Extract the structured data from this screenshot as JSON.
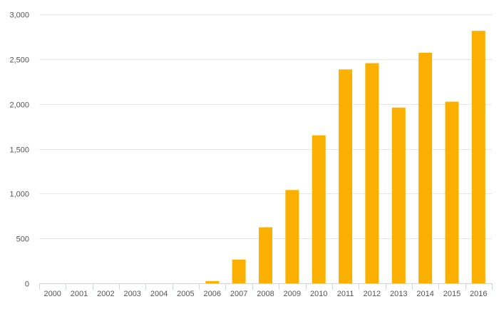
{
  "chart_data": {
    "type": "bar",
    "categories": [
      "2000",
      "2001",
      "2002",
      "2003",
      "2004",
      "2005",
      "2006",
      "2007",
      "2008",
      "2009",
      "2010",
      "2011",
      "2012",
      "2013",
      "2014",
      "2015",
      "2016"
    ],
    "series": [
      {
        "values": [
          0,
          0,
          0,
          0,
          0,
          0,
          25,
          265,
          625,
          1040,
          1650,
          2385,
          2455,
          1960,
          2570,
          2025,
          2815
        ]
      }
    ],
    "ylim": [
      0,
      3000
    ],
    "yticks": [
      0,
      500,
      1000,
      1500,
      2000,
      2500,
      3000
    ],
    "ytick_labels": [
      "0",
      "500",
      "1,000",
      "1,500",
      "2,000",
      "2,500",
      "3,000"
    ],
    "grid": true,
    "colors": {
      "bar": "#fbb000",
      "grid": "#e6e6e6",
      "axis": "#ccd6eb",
      "text": "#555555"
    }
  }
}
